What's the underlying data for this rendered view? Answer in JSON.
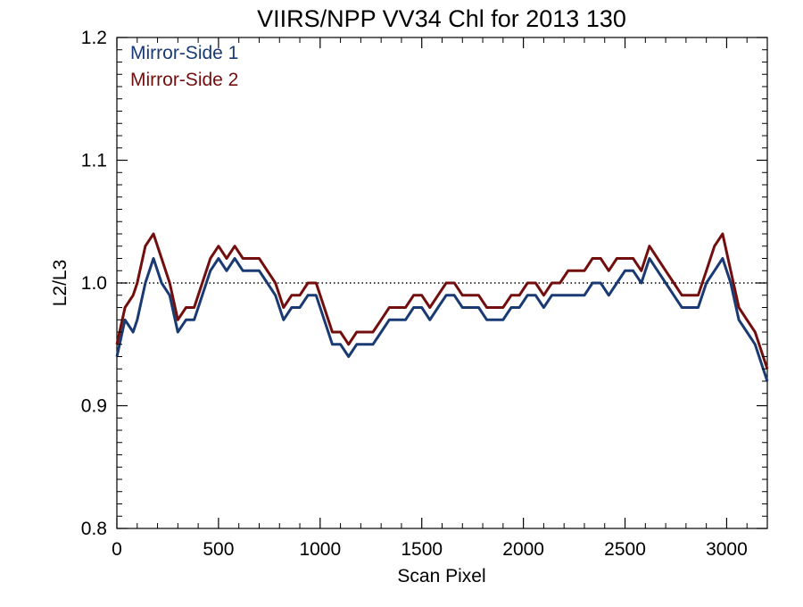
{
  "chart_data": {
    "type": "line",
    "title": "VIIRS/NPP VV34 Chl for 2013 130",
    "xlabel": "Scan Pixel",
    "ylabel": "L2/L3",
    "xlim": [
      0,
      3200
    ],
    "ylim": [
      0.8,
      1.2
    ],
    "x_ticks": [
      0,
      500,
      1000,
      1500,
      2000,
      2500,
      3000
    ],
    "x_tick_labels": [
      "0",
      "500",
      "1000",
      "1500",
      "2000",
      "2500",
      "3000"
    ],
    "y_ticks": [
      0.8,
      0.9,
      1.0,
      1.1,
      1.2
    ],
    "y_tick_labels": [
      "0.8",
      "0.9",
      "1.0",
      "1.1",
      "1.2"
    ],
    "reference_line": {
      "y": 1.0,
      "style": "dotted",
      "color": "#000000"
    },
    "legend_position": "top-left",
    "grid": false,
    "series": [
      {
        "name": "Mirror-Side 1",
        "color": "#1a3a73",
        "x": [
          0,
          40,
          80,
          100,
          140,
          180,
          220,
          260,
          300,
          340,
          380,
          420,
          460,
          500,
          540,
          580,
          620,
          660,
          700,
          740,
          780,
          820,
          860,
          900,
          940,
          980,
          1020,
          1060,
          1100,
          1140,
          1180,
          1220,
          1260,
          1300,
          1340,
          1380,
          1420,
          1460,
          1500,
          1540,
          1580,
          1620,
          1660,
          1700,
          1740,
          1780,
          1820,
          1860,
          1900,
          1940,
          1980,
          2020,
          2060,
          2100,
          2140,
          2180,
          2220,
          2260,
          2300,
          2340,
          2380,
          2420,
          2460,
          2500,
          2540,
          2580,
          2620,
          2660,
          2700,
          2740,
          2780,
          2820,
          2860,
          2900,
          2940,
          2980,
          3020,
          3060,
          3100,
          3140,
          3180,
          3200
        ],
        "values": [
          0.94,
          0.97,
          0.96,
          0.97,
          1.0,
          1.02,
          1.0,
          0.99,
          0.96,
          0.97,
          0.97,
          0.99,
          1.01,
          1.02,
          1.01,
          1.02,
          1.01,
          1.01,
          1.01,
          1.0,
          0.99,
          0.97,
          0.98,
          0.98,
          0.99,
          0.99,
          0.97,
          0.95,
          0.95,
          0.94,
          0.95,
          0.95,
          0.95,
          0.96,
          0.97,
          0.97,
          0.97,
          0.98,
          0.98,
          0.97,
          0.98,
          0.99,
          0.99,
          0.98,
          0.98,
          0.98,
          0.97,
          0.97,
          0.97,
          0.98,
          0.98,
          0.99,
          0.99,
          0.98,
          0.99,
          0.99,
          0.99,
          0.99,
          0.99,
          1.0,
          1.0,
          0.99,
          1.0,
          1.01,
          1.01,
          1.0,
          1.02,
          1.01,
          1.0,
          0.99,
          0.98,
          0.98,
          0.98,
          1.0,
          1.01,
          1.02,
          1.0,
          0.97,
          0.96,
          0.95,
          0.93,
          0.92
        ]
      },
      {
        "name": "Mirror-Side 2",
        "color": "#720e0e",
        "x": [
          0,
          40,
          80,
          100,
          140,
          180,
          220,
          260,
          300,
          340,
          380,
          420,
          460,
          500,
          540,
          580,
          620,
          660,
          700,
          740,
          780,
          820,
          860,
          900,
          940,
          980,
          1020,
          1060,
          1100,
          1140,
          1180,
          1220,
          1260,
          1300,
          1340,
          1380,
          1420,
          1460,
          1500,
          1540,
          1580,
          1620,
          1660,
          1700,
          1740,
          1780,
          1820,
          1860,
          1900,
          1940,
          1980,
          2020,
          2060,
          2100,
          2140,
          2180,
          2220,
          2260,
          2300,
          2340,
          2380,
          2420,
          2460,
          2500,
          2540,
          2580,
          2620,
          2660,
          2700,
          2740,
          2780,
          2820,
          2860,
          2900,
          2940,
          2980,
          3020,
          3060,
          3100,
          3140,
          3180,
          3200
        ],
        "values": [
          0.95,
          0.98,
          0.99,
          1.0,
          1.03,
          1.04,
          1.02,
          1.0,
          0.97,
          0.98,
          0.98,
          1.0,
          1.02,
          1.03,
          1.02,
          1.03,
          1.02,
          1.02,
          1.02,
          1.01,
          1.0,
          0.98,
          0.99,
          0.99,
          1.0,
          1.0,
          0.98,
          0.96,
          0.96,
          0.95,
          0.96,
          0.96,
          0.96,
          0.97,
          0.98,
          0.98,
          0.98,
          0.99,
          0.99,
          0.98,
          0.99,
          1.0,
          1.0,
          0.99,
          0.99,
          0.99,
          0.98,
          0.98,
          0.98,
          0.99,
          0.99,
          1.0,
          1.0,
          0.99,
          1.0,
          1.0,
          1.01,
          1.01,
          1.01,
          1.02,
          1.02,
          1.01,
          1.02,
          1.02,
          1.02,
          1.01,
          1.03,
          1.02,
          1.01,
          1.0,
          0.99,
          0.99,
          0.99,
          1.01,
          1.03,
          1.04,
          1.01,
          0.98,
          0.97,
          0.96,
          0.94,
          0.93
        ]
      }
    ]
  }
}
